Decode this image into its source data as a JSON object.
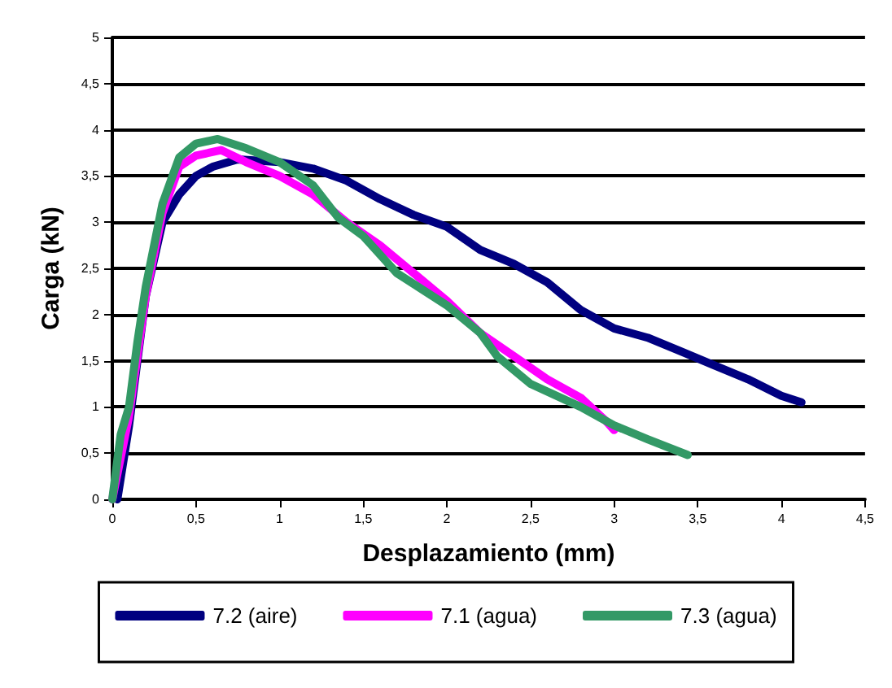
{
  "chart_data": {
    "type": "line",
    "xlabel": "Desplazamiento (mm)",
    "ylabel": "Carga (kN)",
    "xlim": [
      0,
      4.5
    ],
    "xticks": [
      0,
      {
        "value": 0.5,
        "label": "0,5"
      },
      1,
      {
        "value": 1.5,
        "label": "1,5"
      },
      2,
      {
        "value": 2.5,
        "label": "2,5"
      },
      3,
      {
        "value": 3.5,
        "label": "3,5"
      },
      4,
      {
        "value": 4.5,
        "label": "4,5"
      }
    ],
    "ylim": [
      0,
      5
    ],
    "yticks": [
      0,
      {
        "value": 0.5,
        "label": "0,5"
      },
      1,
      {
        "value": 1.5,
        "label": "1,5"
      },
      2,
      {
        "value": 2.5,
        "label": "2,5"
      },
      3,
      {
        "value": 3.5,
        "label": "3,5"
      },
      4,
      {
        "value": 4.5,
        "label": "4,5"
      },
      5
    ],
    "grid": "y",
    "legend": "bottom",
    "marker": "none",
    "line_style": "solid",
    "series": [
      {
        "name": "7.2 (aire)",
        "color": "#000080",
        "x": [
          0.03,
          0.1,
          0.2,
          0.3,
          0.4,
          0.5,
          0.6,
          0.75,
          1.0,
          1.2,
          1.4,
          1.6,
          1.8,
          2.0,
          2.2,
          2.4,
          2.6,
          2.8,
          3.0,
          3.2,
          3.4,
          3.6,
          3.8,
          4.0,
          4.12
        ],
        "values": [
          0,
          0.8,
          2.2,
          3.0,
          3.3,
          3.5,
          3.6,
          3.68,
          3.65,
          3.58,
          3.45,
          3.25,
          3.08,
          2.95,
          2.7,
          2.55,
          2.35,
          2.05,
          1.85,
          1.75,
          1.6,
          1.45,
          1.3,
          1.12,
          1.05
        ]
      },
      {
        "name": "7.1 (agua)",
        "color": "#ff00ff",
        "x": [
          0,
          0.1,
          0.2,
          0.3,
          0.4,
          0.5,
          0.65,
          0.8,
          1.0,
          1.2,
          1.4,
          1.6,
          1.8,
          2.0,
          2.2,
          2.4,
          2.6,
          2.8,
          2.95,
          3.0
        ],
        "values": [
          0,
          0.9,
          2.2,
          3.1,
          3.6,
          3.72,
          3.78,
          3.65,
          3.5,
          3.3,
          3.0,
          2.75,
          2.45,
          2.15,
          1.8,
          1.55,
          1.3,
          1.1,
          0.85,
          0.75
        ]
      },
      {
        "name": "7.3 (agua)",
        "color": "#339966",
        "x": [
          0,
          0.05,
          0.1,
          0.15,
          0.2,
          0.3,
          0.4,
          0.5,
          0.63,
          0.8,
          1.0,
          1.2,
          1.35,
          1.5,
          1.7,
          2.0,
          2.2,
          2.3,
          2.5,
          2.8,
          3.0,
          3.2,
          3.44
        ],
        "values": [
          0,
          0.7,
          1.0,
          1.7,
          2.3,
          3.2,
          3.7,
          3.85,
          3.9,
          3.8,
          3.65,
          3.4,
          3.05,
          2.85,
          2.45,
          2.1,
          1.8,
          1.55,
          1.25,
          1.0,
          0.8,
          0.65,
          0.48
        ]
      }
    ]
  }
}
